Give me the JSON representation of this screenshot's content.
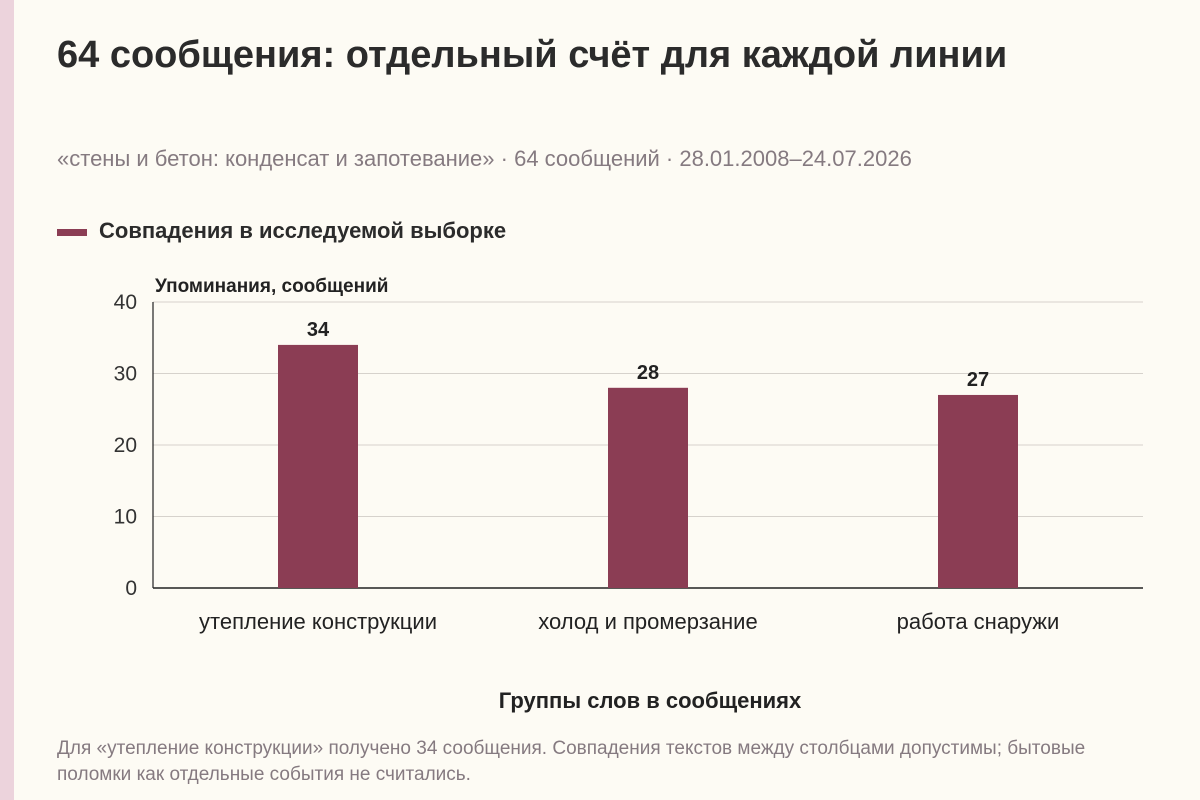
{
  "title": "64 сообщения: отдельный счёт для каждой линии",
  "subtitle": "«стены и бетон: конденсат и запотевание» · 64 сообщений · 28.01.2008–24.07.2026",
  "footnote": "Для «утепление конструкции» получено 34 сообщения. Совпадения текстов между столбцами допустимы; бытовые поломки как отдельные события не считались.",
  "colors": {
    "bar": "#8b3d54",
    "grid": "#d6d2cc",
    "axis": "#222222",
    "accent_stripe": "#ecd3dc"
  },
  "chart_data": {
    "type": "bar",
    "title": "64 сообщения: отдельный счёт для каждой линии",
    "xlabel": "Группы слов в сообщениях",
    "ylabel": "Упоминания, сообщений",
    "categories": [
      "утепление конструкции",
      "холод и промерзание",
      "работа снаружи"
    ],
    "series": [
      {
        "name": "Совпадения в исследуемой выборке",
        "values": [
          34,
          28,
          27
        ]
      }
    ],
    "ylim": [
      0,
      40
    ],
    "yticks": [
      0,
      10,
      20,
      30,
      40
    ],
    "grid": true,
    "legend_position": "top-left",
    "data_labels": true
  }
}
